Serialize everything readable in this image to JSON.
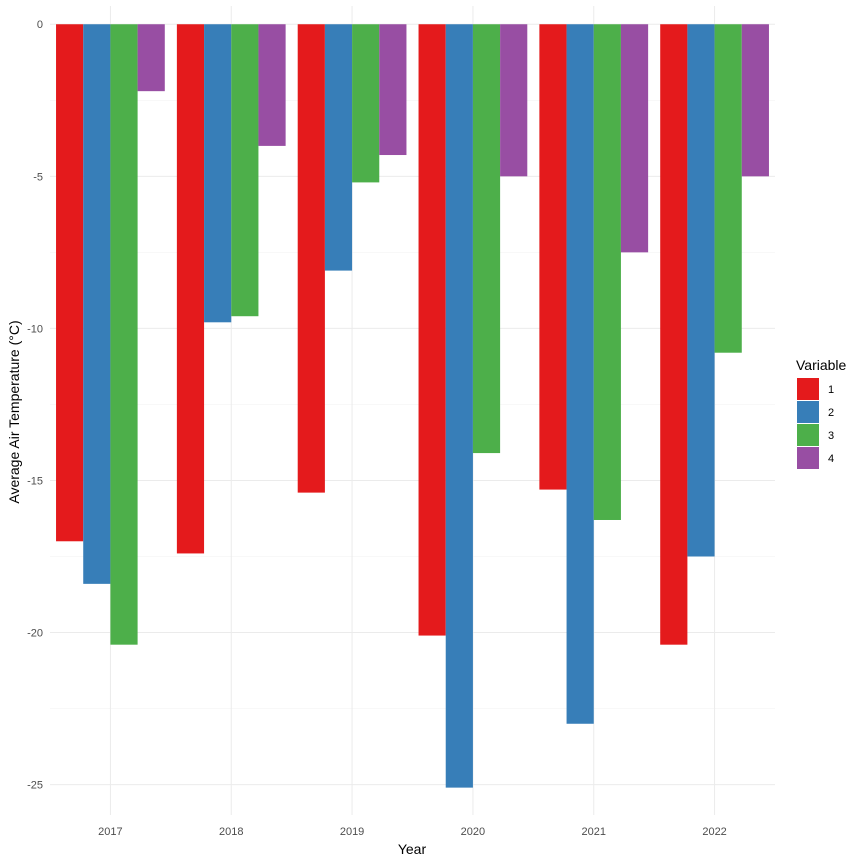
{
  "chart_data": {
    "type": "bar",
    "title": "",
    "xlabel": "Year",
    "ylabel": "Average Air Temperature (°C)",
    "categories": [
      "2017",
      "2018",
      "2019",
      "2020",
      "2021",
      "2022"
    ],
    "series": [
      {
        "name": "1",
        "color": "#e41a1c",
        "values": [
          -17.0,
          -17.4,
          -15.4,
          -20.1,
          -15.3,
          -20.4
        ]
      },
      {
        "name": "2",
        "color": "#377eb8",
        "values": [
          -18.4,
          -9.8,
          -8.1,
          -25.1,
          -23.0,
          -17.5
        ]
      },
      {
        "name": "3",
        "color": "#4daf4a",
        "values": [
          -20.4,
          -9.6,
          -5.2,
          -14.1,
          -16.3,
          -10.8
        ]
      },
      {
        "name": "4",
        "color": "#984ea3",
        "values": [
          -2.2,
          -4.0,
          -4.3,
          -5.0,
          -7.5,
          -5.0
        ]
      }
    ],
    "ylim": [
      -26.0,
      0.6
    ],
    "yticks": [
      0,
      -5,
      -10,
      -15,
      -20,
      -25
    ],
    "ytick_labels": [
      "0",
      "-5",
      "-10",
      "-15",
      "-20",
      "-25"
    ],
    "grid": true,
    "legend": {
      "title": "Variable",
      "position": "right"
    }
  }
}
